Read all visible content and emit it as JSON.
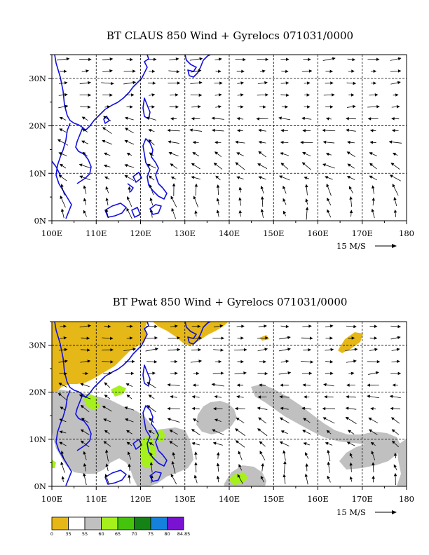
{
  "colors": {
    "coast": "#1010e0",
    "grid": "#000000",
    "vector": "#000000"
  },
  "chart_data": [
    {
      "type": "vector-field map",
      "title": "BT CLAUS 850 Wind + Gyrelocs 071031/0000",
      "x_ticks": [
        "100E",
        "110E",
        "120E",
        "130E",
        "140E",
        "150E",
        "160E",
        "170E",
        "180"
      ],
      "y_ticks": [
        "0N",
        "10N",
        "20N",
        "30N"
      ],
      "xlim": [
        100,
        180
      ],
      "ylim": [
        0,
        35
      ],
      "reference_vector": "15 M/S"
    },
    {
      "type": "filled-contour map with vectors",
      "title": "BT Pwat 850 Wind + Gyrelocs 071031/0000",
      "x_ticks": [
        "100E",
        "110E",
        "120E",
        "130E",
        "140E",
        "150E",
        "160E",
        "170E",
        "180"
      ],
      "y_ticks": [
        "0N",
        "10N",
        "20N",
        "30N"
      ],
      "xlim": [
        100,
        180
      ],
      "ylim": [
        0,
        35
      ],
      "reference_vector": "15 M/S",
      "colorbar": {
        "labels": [
          "0",
          "35",
          "55",
          "60",
          "65",
          "70",
          "75",
          "80",
          "84.85"
        ],
        "colors": [
          "#e6b817",
          "#ffffff",
          "#c0c0c0",
          "#a6f01c",
          "#44c40a",
          "#148214",
          "#1482dc",
          "#7a12d2"
        ]
      }
    }
  ]
}
